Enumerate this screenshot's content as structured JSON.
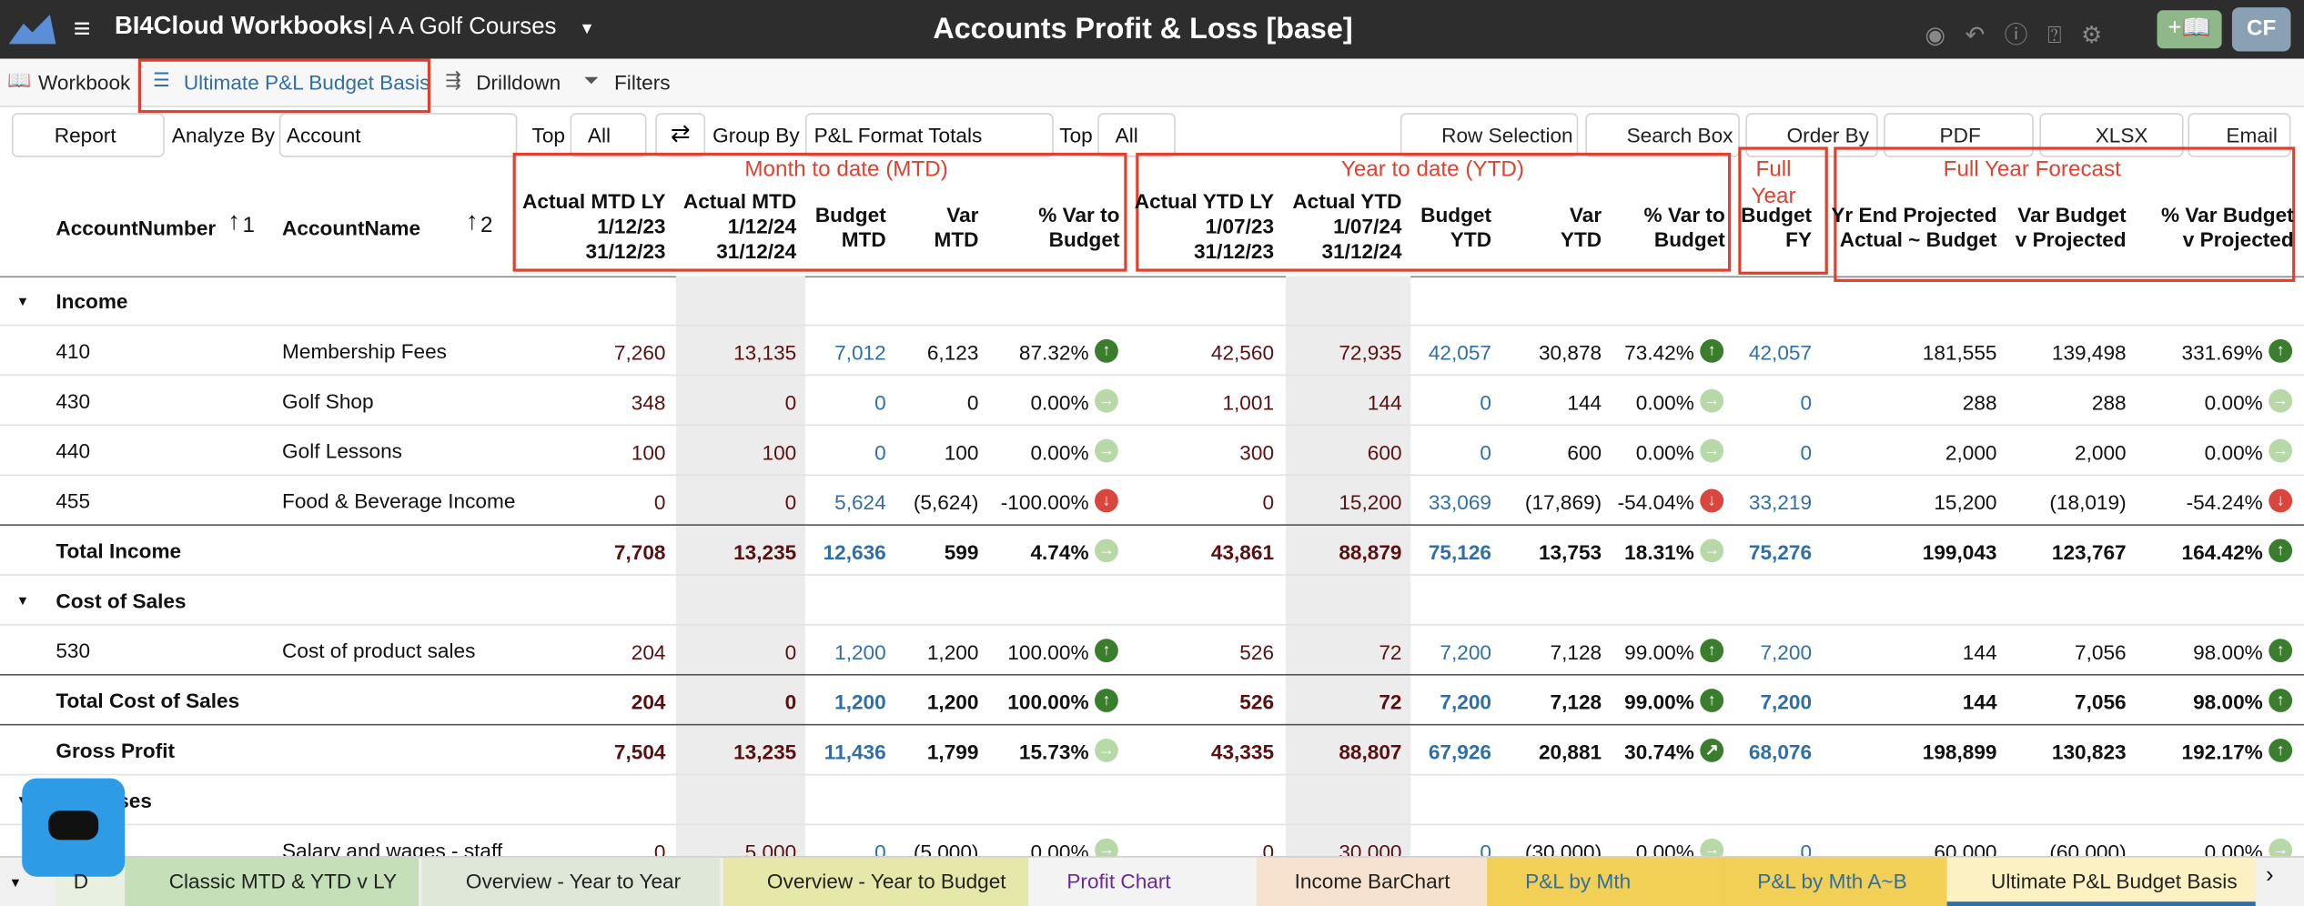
{
  "header": {
    "app": "BI4Cloud Workbooks",
    "company": "| A A Golf Courses",
    "title": "Accounts Profit & Loss [base]",
    "user": "CF"
  },
  "tabs": [
    "Workbook",
    "Ultimate P&L Budget Basis",
    "Drilldown",
    "Filters"
  ],
  "toolbar": {
    "report": "Report",
    "analyze_label": "Analyze By",
    "analyze_value": "Account",
    "top_label": "Top",
    "top_value": "All",
    "group_label": "Group By",
    "group_value": "P&L Format Totals",
    "top2_label": "Top",
    "top2_value": "All",
    "buttons": [
      "Row Selection",
      "Search Box",
      "Order By",
      "PDF",
      "XLSX",
      "Email"
    ]
  },
  "groups": [
    "Month to date (MTD)",
    "Year to date (YTD)",
    "Full Year",
    "Full Year Forecast"
  ],
  "key_columns": [
    {
      "label": "AccountNumber",
      "sort": "1"
    },
    {
      "label": "AccountName",
      "sort": "2"
    }
  ],
  "columns": [
    [
      "Actual MTD LY",
      "1/12/23",
      "31/12/23"
    ],
    [
      "Actual MTD",
      "1/12/24",
      "31/12/24"
    ],
    [
      "Budget",
      "MTD"
    ],
    [
      "Var",
      "MTD"
    ],
    [
      "% Var to",
      "Budget"
    ],
    [
      "Actual YTD LY",
      "1/07/23",
      "31/12/23"
    ],
    [
      "Actual YTD",
      "1/07/24",
      "31/12/24"
    ],
    [
      "Budget",
      "YTD"
    ],
    [
      "Var",
      "YTD"
    ],
    [
      "% Var to",
      "Budget"
    ],
    [
      "Budget",
      "FY"
    ],
    [
      "Yr End Projected",
      "Actual ~ Budget"
    ],
    [
      "Var Budget",
      "v Projected"
    ],
    [
      "% Var Budget",
      "v Projected"
    ]
  ],
  "rows": [
    {
      "kind": "group",
      "label": "Income"
    },
    {
      "kind": "detail",
      "number": "410",
      "name": "Membership Fees",
      "cells": [
        "7,260",
        "13,135",
        "7,012",
        "6,123",
        "87.32%",
        "42,560",
        "72,935",
        "42,057",
        "30,878",
        "73.42%",
        "42,057",
        "181,555",
        "139,498",
        "331.69%"
      ],
      "trend": [
        "up",
        "up",
        "up"
      ]
    },
    {
      "kind": "detail",
      "number": "430",
      "name": "Golf Shop",
      "cells": [
        "348",
        "0",
        "0",
        "0",
        "0.00%",
        "1,001",
        "144",
        "0",
        "144",
        "0.00%",
        "0",
        "288",
        "288",
        "0.00%"
      ],
      "trend": [
        "flat",
        "flat",
        "flat"
      ]
    },
    {
      "kind": "detail",
      "number": "440",
      "name": "Golf Lessons",
      "cells": [
        "100",
        "100",
        "0",
        "100",
        "0.00%",
        "300",
        "600",
        "0",
        "600",
        "0.00%",
        "0",
        "2,000",
        "2,000",
        "0.00%"
      ],
      "trend": [
        "flat",
        "flat",
        "flat"
      ]
    },
    {
      "kind": "detail",
      "number": "455",
      "name": "Food & Beverage Income",
      "cells": [
        "0",
        "0",
        "5,624",
        "(5,624)",
        "-100.00%",
        "0",
        "15,200",
        "33,069",
        "(17,869)",
        "-54.04%",
        "33,219",
        "15,200",
        "(18,019)",
        "-54.24%"
      ],
      "trend": [
        "down",
        "down",
        "down"
      ]
    },
    {
      "kind": "total",
      "label": "Total Income",
      "cells": [
        "7,708",
        "13,235",
        "12,636",
        "599",
        "4.74%",
        "43,861",
        "88,879",
        "75,126",
        "13,753",
        "18.31%",
        "75,276",
        "199,043",
        "123,767",
        "164.42%"
      ],
      "trend": [
        "flat",
        "flat",
        "up"
      ]
    },
    {
      "kind": "group",
      "label": "Cost of Sales"
    },
    {
      "kind": "detail",
      "number": "530",
      "name": "Cost of product sales",
      "cells": [
        "204",
        "0",
        "1,200",
        "1,200",
        "100.00%",
        "526",
        "72",
        "7,200",
        "7,128",
        "99.00%",
        "7,200",
        "144",
        "7,056",
        "98.00%"
      ],
      "trend": [
        "up",
        "up",
        "up"
      ]
    },
    {
      "kind": "total",
      "label": "Total Cost of Sales",
      "cells": [
        "204",
        "0",
        "1,200",
        "1,200",
        "100.00%",
        "526",
        "72",
        "7,200",
        "7,128",
        "99.00%",
        "7,200",
        "144",
        "7,056",
        "98.00%"
      ],
      "trend": [
        "up",
        "up",
        "up"
      ]
    },
    {
      "kind": "total",
      "label": "Gross Profit",
      "cells": [
        "7,504",
        "13,235",
        "11,436",
        "1,799",
        "15.73%",
        "43,335",
        "88,807",
        "67,926",
        "20,881",
        "30.74%",
        "68,076",
        "198,899",
        "130,823",
        "192.17%"
      ],
      "trend": [
        "flat",
        "up-right",
        "up"
      ]
    },
    {
      "kind": "group",
      "label": "Expenses"
    },
    {
      "kind": "detail",
      "number": "",
      "name": "Salary and wages - staff",
      "cells": [
        "0",
        "5,000",
        "0",
        "(5,000)",
        "0.00%",
        "0",
        "30,000",
        "0",
        "(30,000)",
        "0.00%",
        "0",
        "60,000",
        "(60,000)",
        "0.00%"
      ],
      "trend": [
        "flat",
        "flat",
        "flat"
      ]
    }
  ],
  "sheet_tabs": [
    "D",
    "Classic MTD & YTD  v LY",
    "Overview - Year to Year",
    "Overview - Year to Budget",
    "Profit Chart",
    "Income BarChart",
    "P&L by Mth",
    "P&L by Mth A~B",
    "Ultimate P&L Budget Basis"
  ]
}
